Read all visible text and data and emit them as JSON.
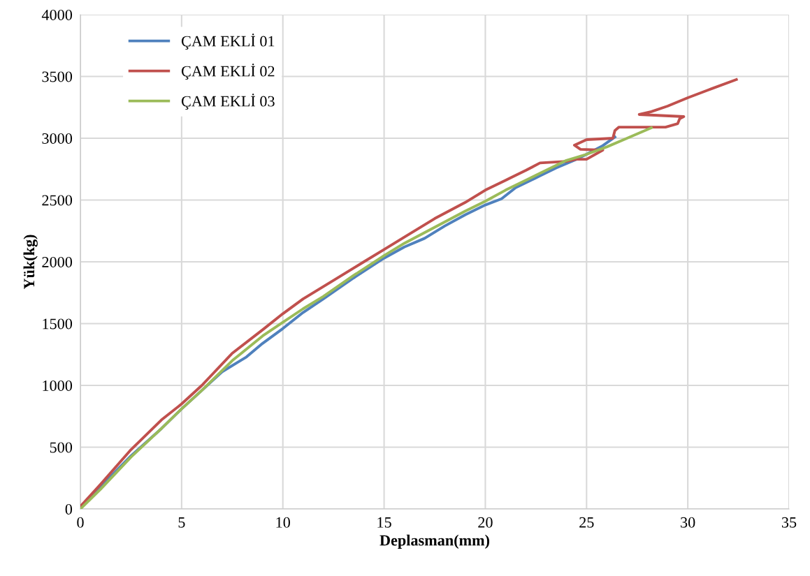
{
  "chart_data": {
    "type": "line",
    "xlabel": "Deplasman(mm)",
    "ylabel": "Yük(kg)",
    "xlim": [
      0,
      35
    ],
    "xticks": [
      0,
      5,
      10,
      15,
      20,
      25,
      30,
      35
    ],
    "ylim": [
      0,
      4000
    ],
    "yticks": [
      0,
      500,
      1000,
      1500,
      2000,
      2500,
      3000,
      3500,
      4000
    ],
    "grid": true,
    "legend": "top left",
    "marker": "none",
    "line_style": "solid",
    "series": [
      {
        "name": "ÇAM EKLİ 01",
        "color": "#4f81bd",
        "x": [
          0,
          1,
          2.5,
          4,
          5,
          6,
          7,
          7.8,
          8.2,
          9,
          10,
          11,
          12,
          13.5,
          15,
          16,
          17,
          18,
          19,
          20,
          20.8,
          21.5,
          22.5,
          23.5,
          24.5,
          25,
          25.8,
          26.4
        ],
        "values": [
          20,
          180,
          430,
          650,
          810,
          960,
          1110,
          1190,
          1230,
          1340,
          1460,
          1590,
          1700,
          1870,
          2030,
          2120,
          2190,
          2290,
          2380,
          2460,
          2510,
          2600,
          2680,
          2760,
          2830,
          2870,
          2940,
          3010
        ]
      },
      {
        "name": "ÇAM EKLİ 02",
        "color": "#c0504d",
        "x": [
          0,
          1,
          2.5,
          4,
          5,
          6,
          7.5,
          9,
          10,
          11,
          12.5,
          14,
          15,
          16,
          17.5,
          19,
          20,
          21,
          22,
          22.7,
          24.0,
          24.5,
          25.0,
          25.8,
          24.7,
          24.4,
          25.0,
          26.3,
          26.4,
          26.6,
          28.9,
          29.5,
          29.6,
          29.8,
          27.6,
          28.2,
          29.0,
          30.0,
          31.0,
          32.4
        ],
        "values": [
          20,
          200,
          480,
          720,
          850,
          1000,
          1260,
          1450,
          1580,
          1700,
          1850,
          2000,
          2100,
          2200,
          2350,
          2480,
          2580,
          2660,
          2740,
          2800,
          2813,
          2830,
          2830,
          2904,
          2910,
          2944,
          2989,
          3000,
          3062,
          3090,
          3090,
          3118,
          3158,
          3175,
          3192,
          3215,
          3260,
          3328,
          3390,
          3475
        ]
      },
      {
        "name": "ÇAM EKLİ 03",
        "color": "#9bbb59",
        "x": [
          0,
          1,
          2.5,
          4,
          5,
          6,
          7.5,
          9,
          10,
          11,
          12,
          13.5,
          15,
          16,
          17.5,
          19,
          20,
          21,
          22.5,
          24,
          25,
          26,
          27,
          28.2
        ],
        "values": [
          0,
          160,
          420,
          650,
          810,
          960,
          1200,
          1400,
          1510,
          1620,
          1720,
          1890,
          2050,
          2150,
          2280,
          2410,
          2490,
          2580,
          2700,
          2820,
          2870,
          2930,
          3000,
          3085
        ]
      }
    ]
  }
}
